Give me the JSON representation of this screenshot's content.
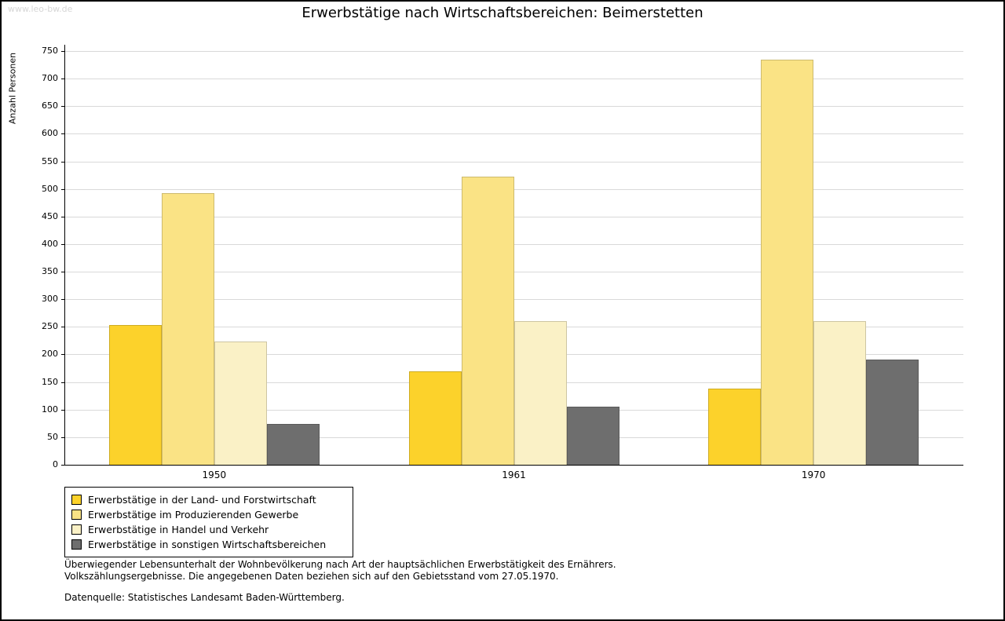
{
  "watermark": "www.leo-bw.de",
  "title": "Erwerbstätige nach Wirtschaftsbereichen: Beimerstetten",
  "chart_data": {
    "type": "bar",
    "title": "Erwerbstätige nach Wirtschaftsbereichen: Beimerstetten",
    "xlabel": "",
    "ylabel": "Anzahl Personen",
    "ylim": [
      0,
      750
    ],
    "ytick_step": 50,
    "grid": true,
    "legend_position": "bottom-left",
    "categories": [
      "1950",
      "1961",
      "1970"
    ],
    "series": [
      {
        "name": "Erwerbstätige in der Land- und Forstwirtschaft",
        "color": "#FCD22B",
        "values": [
          253,
          170,
          138
        ]
      },
      {
        "name": "Erwerbstätige im Produzierenden Gewerbe",
        "color": "#FAE385",
        "values": [
          492,
          523,
          735
        ]
      },
      {
        "name": "Erwerbstätige in Handel und Verkehr",
        "color": "#FAF1C6",
        "values": [
          224,
          261,
          261
        ]
      },
      {
        "name": "Erwerbstätige in sonstigen Wirtschaftsbereichen",
        "color": "#6E6E6E",
        "values": [
          74,
          105,
          191
        ]
      }
    ]
  },
  "caption": {
    "line1": "Überwiegender Lebensunterhalt der Wohnbevölkerung nach Art der hauptsächlichen Erwerbstätigkeit des Ernährers.",
    "line2": "Volkszählungsergebnisse. Die angegebenen Daten beziehen sich auf den Gebietsstand vom 27.05.1970.",
    "source": "Datenquelle: Statistisches Landesamt Baden-Württemberg."
  }
}
